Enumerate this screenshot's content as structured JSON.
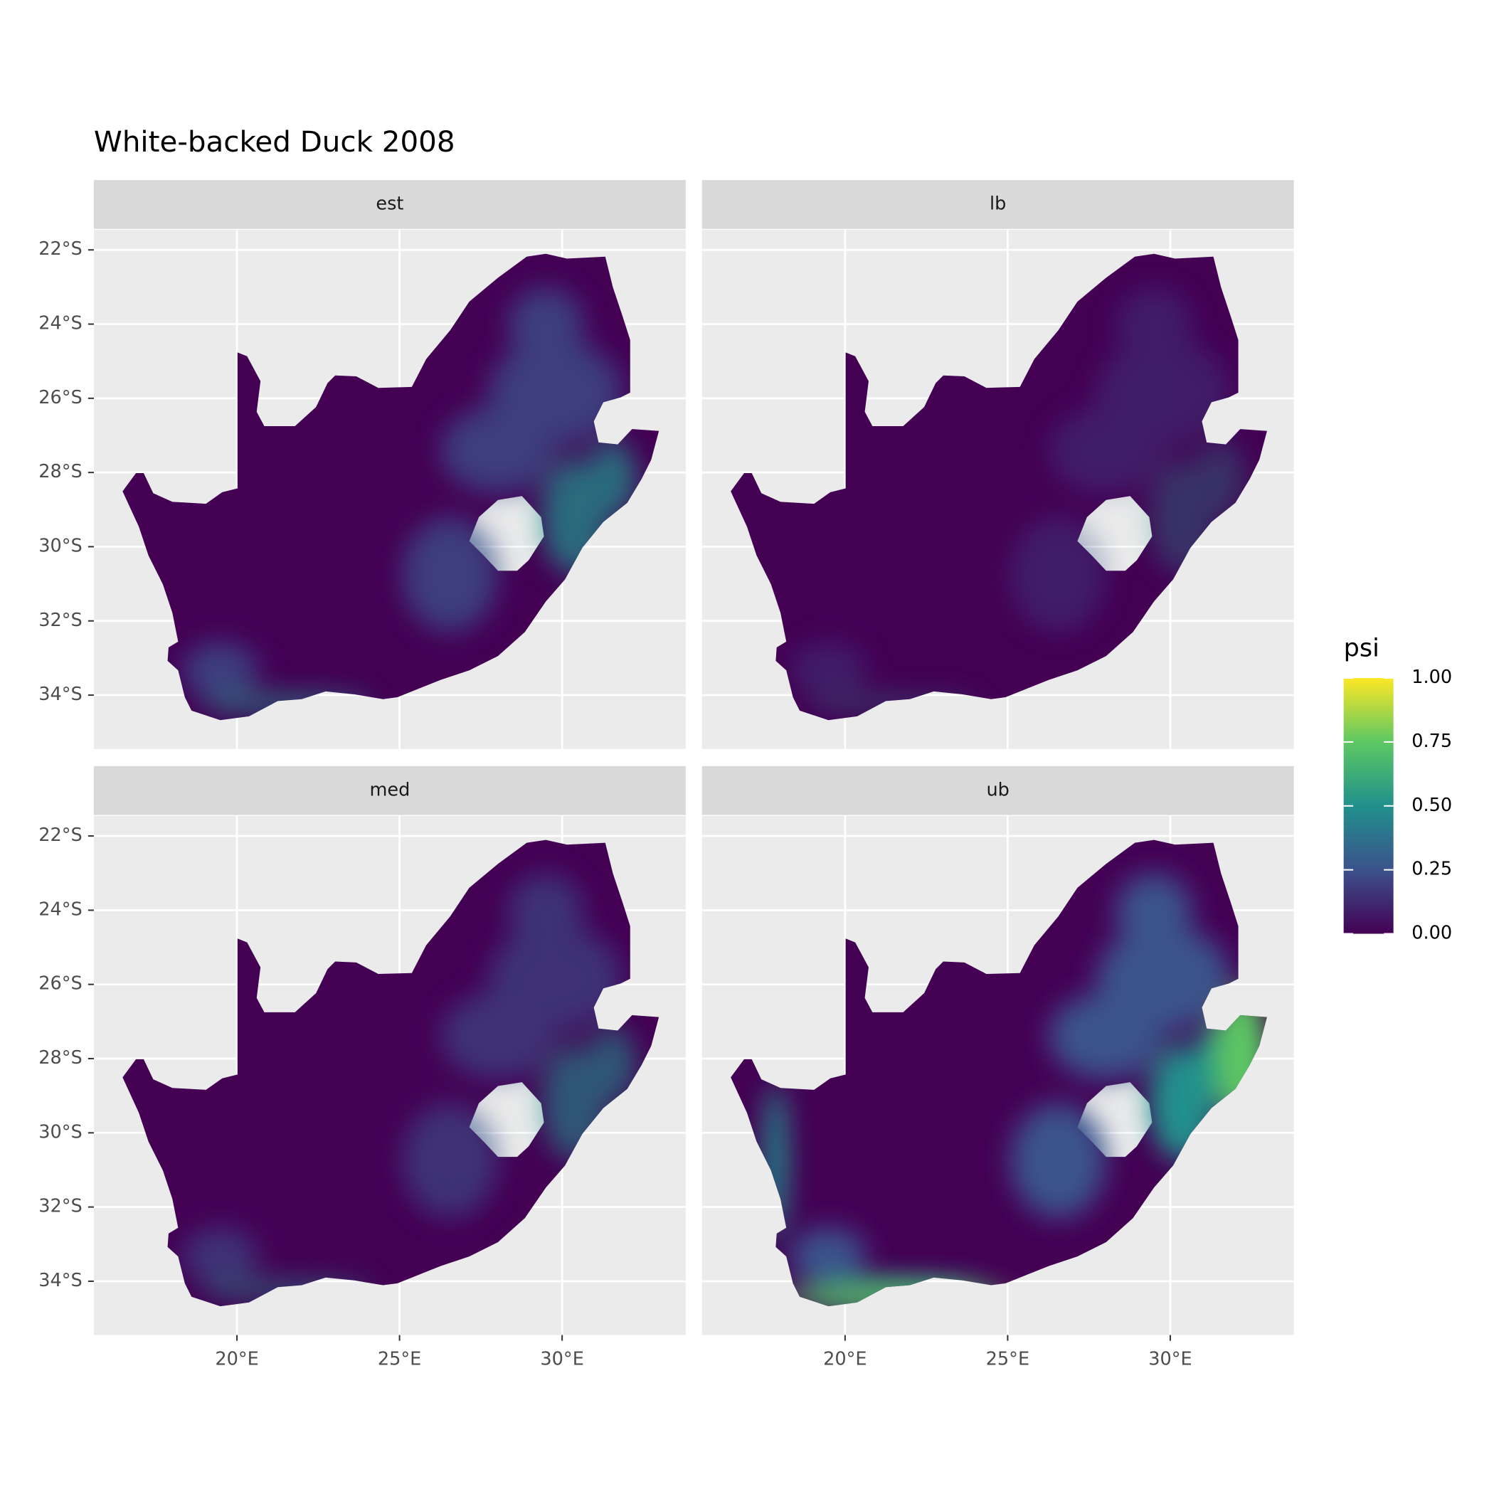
{
  "chart_data": {
    "type": "raster-map",
    "title": "White-backed Duck 2008",
    "facets": [
      "est",
      "lb",
      "med",
      "ub"
    ],
    "xlim": [
      15.6,
      33.8
    ],
    "ylim": [
      -35.45,
      -21.46
    ],
    "xticks": [
      {
        "value": 20,
        "label": "20°E"
      },
      {
        "value": 25,
        "label": "25°E"
      },
      {
        "value": 30,
        "label": "30°E"
      }
    ],
    "yticks": [
      {
        "value": -22,
        "label": "22°S"
      },
      {
        "value": -24,
        "label": "24°S"
      },
      {
        "value": -26,
        "label": "26°S"
      },
      {
        "value": -28,
        "label": "28°S"
      },
      {
        "value": -30,
        "label": "30°S"
      },
      {
        "value": -32,
        "label": "32°S"
      },
      {
        "value": -34,
        "label": "34°S"
      }
    ],
    "grid": true,
    "legend": {
      "title": "psi",
      "lim": [
        0,
        1
      ],
      "ticks": [
        {
          "value": 0,
          "label": "0.00"
        },
        {
          "value": 0.25,
          "label": "0.25"
        },
        {
          "value": 0.5,
          "label": "0.50"
        },
        {
          "value": 0.75,
          "label": "0.75"
        },
        {
          "value": 1,
          "label": "1.00"
        }
      ],
      "colors": [
        "#440154",
        "#3b528b",
        "#21908c",
        "#5dc863",
        "#fde725"
      ]
    }
  }
}
